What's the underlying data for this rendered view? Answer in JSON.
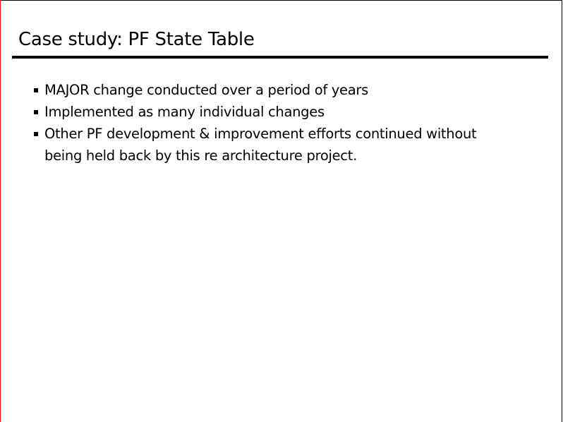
{
  "slide": {
    "title": "Case study: PF State Table",
    "bullets": [
      "MAJOR change conducted over a period of years",
      "Implemented as many individual changes",
      "Other PF development & improvement efforts continued without being held back by this re architecture project."
    ]
  },
  "colors": {
    "left_border": "#ff0000",
    "rule": "#000000"
  }
}
